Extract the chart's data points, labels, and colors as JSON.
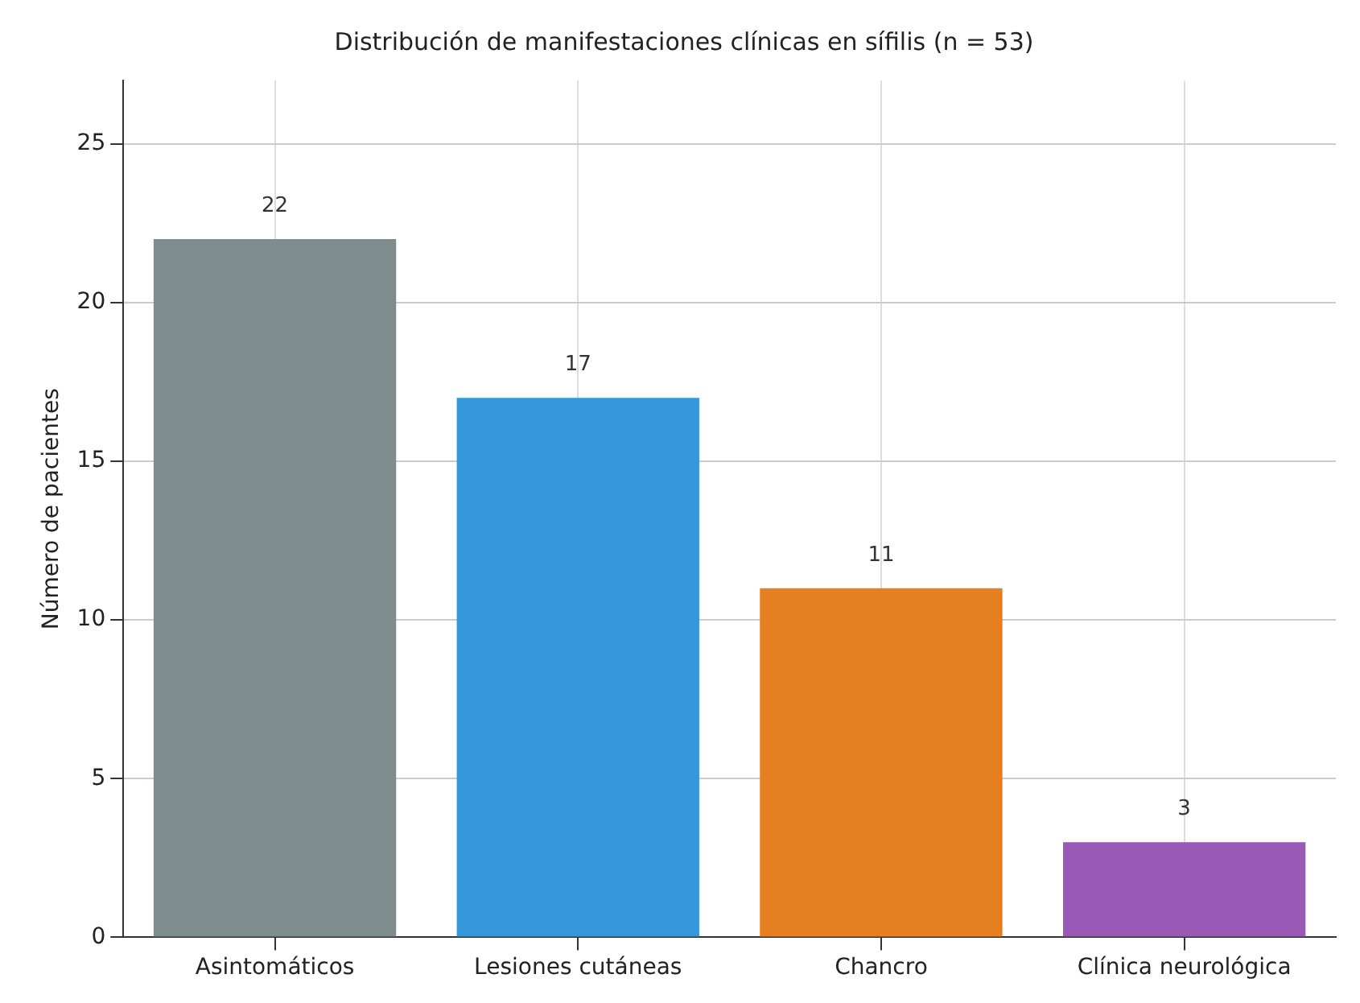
{
  "chart_data": {
    "type": "bar",
    "title": "Distribución de manifestaciones clínicas en sífilis (n = 53)",
    "ylabel": "Número de pacientes",
    "categories": [
      "Asintomáticos",
      "Lesiones cutáneas",
      "Chancro",
      "Clínica neurológica"
    ],
    "values": [
      22,
      17,
      11,
      3
    ],
    "colors": [
      "#7f8c8d",
      "#3498db",
      "#e67e22",
      "#9b59b6"
    ],
    "ylim": [
      0,
      27
    ],
    "yticks": [
      0,
      5,
      10,
      15,
      20,
      25
    ],
    "grid": true,
    "data_labels": true,
    "legend": false
  }
}
